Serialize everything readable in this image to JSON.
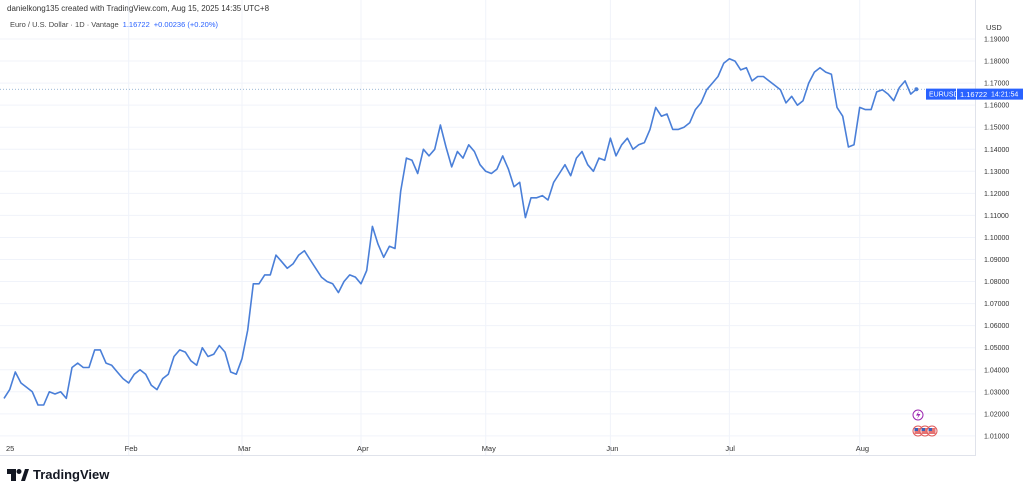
{
  "header": {
    "credit": "danielkong135 created with TradingView.com, Aug 15, 2025 14:35 UTC+8"
  },
  "legend": {
    "symbol": "Euro / U.S. Dollar · 1D · Vantage",
    "price": "1.16722",
    "change": "+0.00236 (+0.20%)"
  },
  "axis": {
    "currency": "USD"
  },
  "last_price": {
    "symbol_label": "EURUSD",
    "price": "1.16722",
    "countdown": "14:21:54"
  },
  "branding": {
    "logo": "TradingView"
  },
  "colors": {
    "line": "#4a7fd8",
    "accent": "#2962ff",
    "grid": "#f0f3fa"
  },
  "event_icons": [
    "lightning-icon",
    "us-flag-icon",
    "us-flag-icon",
    "us-flag-icon"
  ],
  "chart_data": {
    "type": "line",
    "title": "Euro / U.S. Dollar · 1D · Vantage",
    "ylim": [
      1.005,
      1.195
    ],
    "grid": true,
    "y_ticks": [
      "1.01000",
      "1.02000",
      "1.03000",
      "1.04000",
      "1.05000",
      "1.06000",
      "1.07000",
      "1.08000",
      "1.09000",
      "1.10000",
      "1.11000",
      "1.12000",
      "1.13000",
      "1.14000",
      "1.15000",
      "1.16000",
      "1.17000",
      "1.18000",
      "1.19000"
    ],
    "x_ticks": [
      {
        "label": "25",
        "date": "2025-01-02"
      },
      {
        "label": "Feb",
        "date": "2025-02-03"
      },
      {
        "label": "Mar",
        "date": "2025-03-03"
      },
      {
        "label": "Apr",
        "date": "2025-04-01"
      },
      {
        "label": "May",
        "date": "2025-05-01"
      },
      {
        "label": "Jun",
        "date": "2025-06-02"
      },
      {
        "label": "Jul",
        "date": "2025-07-01"
      },
      {
        "label": "Aug",
        "date": "2025-08-01"
      }
    ],
    "x": [
      "2025-01-02",
      "2025-01-03",
      "2025-01-06",
      "2025-01-07",
      "2025-01-08",
      "2025-01-09",
      "2025-01-10",
      "2025-01-13",
      "2025-01-14",
      "2025-01-15",
      "2025-01-16",
      "2025-01-17",
      "2025-01-20",
      "2025-01-21",
      "2025-01-22",
      "2025-01-23",
      "2025-01-24",
      "2025-01-27",
      "2025-01-28",
      "2025-01-29",
      "2025-01-30",
      "2025-01-31",
      "2025-02-03",
      "2025-02-04",
      "2025-02-05",
      "2025-02-06",
      "2025-02-07",
      "2025-02-10",
      "2025-02-11",
      "2025-02-12",
      "2025-02-13",
      "2025-02-14",
      "2025-02-17",
      "2025-02-18",
      "2025-02-19",
      "2025-02-20",
      "2025-02-21",
      "2025-02-24",
      "2025-02-25",
      "2025-02-26",
      "2025-02-27",
      "2025-02-28",
      "2025-03-03",
      "2025-03-04",
      "2025-03-05",
      "2025-03-06",
      "2025-03-07",
      "2025-03-10",
      "2025-03-11",
      "2025-03-12",
      "2025-03-13",
      "2025-03-14",
      "2025-03-17",
      "2025-03-18",
      "2025-03-19",
      "2025-03-20",
      "2025-03-21",
      "2025-03-24",
      "2025-03-25",
      "2025-03-26",
      "2025-03-27",
      "2025-03-28",
      "2025-03-31",
      "2025-04-01",
      "2025-04-02",
      "2025-04-03",
      "2025-04-04",
      "2025-04-07",
      "2025-04-08",
      "2025-04-09",
      "2025-04-10",
      "2025-04-11",
      "2025-04-14",
      "2025-04-15",
      "2025-04-16",
      "2025-04-17",
      "2025-04-18",
      "2025-04-21",
      "2025-04-22",
      "2025-04-23",
      "2025-04-24",
      "2025-04-25",
      "2025-04-28",
      "2025-04-29",
      "2025-04-30",
      "2025-05-01",
      "2025-05-02",
      "2025-05-05",
      "2025-05-06",
      "2025-05-07",
      "2025-05-08",
      "2025-05-09",
      "2025-05-12",
      "2025-05-13",
      "2025-05-14",
      "2025-05-15",
      "2025-05-16",
      "2025-05-19",
      "2025-05-20",
      "2025-05-21",
      "2025-05-22",
      "2025-05-23",
      "2025-05-26",
      "2025-05-27",
      "2025-05-28",
      "2025-05-29",
      "2025-05-30",
      "2025-06-02",
      "2025-06-03",
      "2025-06-04",
      "2025-06-05",
      "2025-06-06",
      "2025-06-09",
      "2025-06-10",
      "2025-06-11",
      "2025-06-12",
      "2025-06-13",
      "2025-06-16",
      "2025-06-17",
      "2025-06-18",
      "2025-06-19",
      "2025-06-20",
      "2025-06-23",
      "2025-06-24",
      "2025-06-25",
      "2025-06-26",
      "2025-06-27",
      "2025-06-30",
      "2025-07-01",
      "2025-07-02",
      "2025-07-03",
      "2025-07-04",
      "2025-07-07",
      "2025-07-08",
      "2025-07-09",
      "2025-07-10",
      "2025-07-11",
      "2025-07-14",
      "2025-07-15",
      "2025-07-16",
      "2025-07-17",
      "2025-07-18",
      "2025-07-21",
      "2025-07-22",
      "2025-07-23",
      "2025-07-24",
      "2025-07-25",
      "2025-07-28",
      "2025-07-29",
      "2025-07-30",
      "2025-07-31",
      "2025-08-01",
      "2025-08-04",
      "2025-08-05",
      "2025-08-06",
      "2025-08-07",
      "2025-08-08",
      "2025-08-11",
      "2025-08-12",
      "2025-08-13",
      "2025-08-14",
      "2025-08-15"
    ],
    "y": [
      1.027,
      1.031,
      1.039,
      1.034,
      1.032,
      1.03,
      1.024,
      1.024,
      1.03,
      1.029,
      1.03,
      1.027,
      1.041,
      1.043,
      1.041,
      1.041,
      1.049,
      1.049,
      1.043,
      1.042,
      1.039,
      1.036,
      1.034,
      1.038,
      1.04,
      1.038,
      1.033,
      1.031,
      1.036,
      1.038,
      1.046,
      1.049,
      1.048,
      1.044,
      1.042,
      1.05,
      1.046,
      1.047,
      1.051,
      1.048,
      1.039,
      1.038,
      1.045,
      1.058,
      1.079,
      1.079,
      1.083,
      1.083,
      1.092,
      1.089,
      1.086,
      1.088,
      1.092,
      1.094,
      1.09,
      1.086,
      1.082,
      1.08,
      1.079,
      1.075,
      1.08,
      1.083,
      1.082,
      1.079,
      1.085,
      1.105,
      1.097,
      1.091,
      1.096,
      1.095,
      1.121,
      1.136,
      1.135,
      1.129,
      1.14,
      1.137,
      1.14,
      1.151,
      1.141,
      1.132,
      1.139,
      1.136,
      1.142,
      1.139,
      1.133,
      1.13,
      1.129,
      1.131,
      1.137,
      1.131,
      1.123,
      1.125,
      1.109,
      1.118,
      1.118,
      1.119,
      1.117,
      1.125,
      1.129,
      1.133,
      1.128,
      1.136,
      1.139,
      1.133,
      1.13,
      1.136,
      1.135,
      1.145,
      1.137,
      1.142,
      1.145,
      1.14,
      1.142,
      1.143,
      1.149,
      1.159,
      1.155,
      1.156,
      1.149,
      1.149,
      1.15,
      1.152,
      1.158,
      1.161,
      1.167,
      1.17,
      1.173,
      1.179,
      1.181,
      1.18,
      1.176,
      1.177,
      1.171,
      1.173,
      1.173,
      1.171,
      1.169,
      1.167,
      1.161,
      1.164,
      1.16,
      1.162,
      1.17,
      1.175,
      1.177,
      1.175,
      1.174,
      1.159,
      1.155,
      1.141,
      1.142,
      1.159,
      1.158,
      1.158,
      1.166,
      1.167,
      1.165,
      1.162,
      1.168,
      1.171,
      1.165,
      1.16722
    ]
  }
}
